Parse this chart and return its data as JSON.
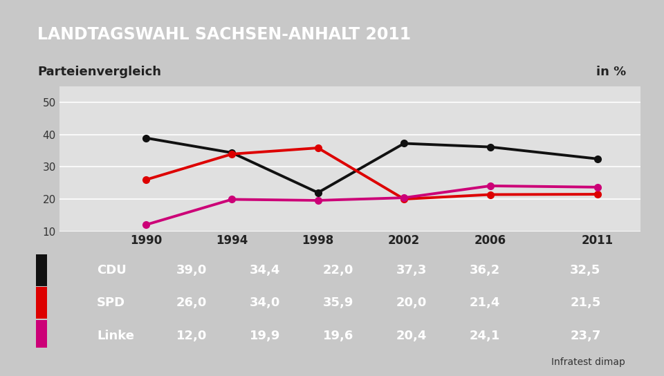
{
  "title": "LANDTAGSWAHL SACHSEN-ANHALT 2011",
  "subtitle": "Parteienvergleich",
  "subtitle_right": "in %",
  "title_bg_color": "#1e3d7a",
  "subtitle_bg_color": "#f0f0f0",
  "table_header_bg": "#f0f0f0",
  "table_data_bg": "#3d6fa8",
  "background_color": "#c8c8c8",
  "chart_bg_color": "#e0e0e0",
  "years": [
    1990,
    1994,
    1998,
    2002,
    2006,
    2011
  ],
  "series": [
    {
      "name": "CDU",
      "values": [
        39.0,
        34.4,
        22.0,
        37.3,
        36.2,
        32.5
      ],
      "color": "#111111",
      "marker": "o"
    },
    {
      "name": "SPD",
      "values": [
        26.0,
        34.0,
        35.9,
        20.0,
        21.4,
        21.5
      ],
      "color": "#dd0000",
      "marker": "o"
    },
    {
      "name": "Linke",
      "values": [
        12.0,
        19.9,
        19.6,
        20.4,
        24.1,
        23.7
      ],
      "color": "#cc0077",
      "marker": "o"
    }
  ],
  "ylim": [
    10,
    55
  ],
  "yticks": [
    10,
    20,
    30,
    40,
    50
  ],
  "source": "Infratest dimap",
  "title_fontsize": 17,
  "subtitle_fontsize": 13,
  "axis_fontsize": 11,
  "table_year_fontsize": 12,
  "table_data_fontsize": 13,
  "line_width": 2.8,
  "marker_size": 7,
  "cdu_indicator_color": "#111111",
  "spd_indicator_color": "#dd0000",
  "linke_indicator_color": "#cc0077"
}
